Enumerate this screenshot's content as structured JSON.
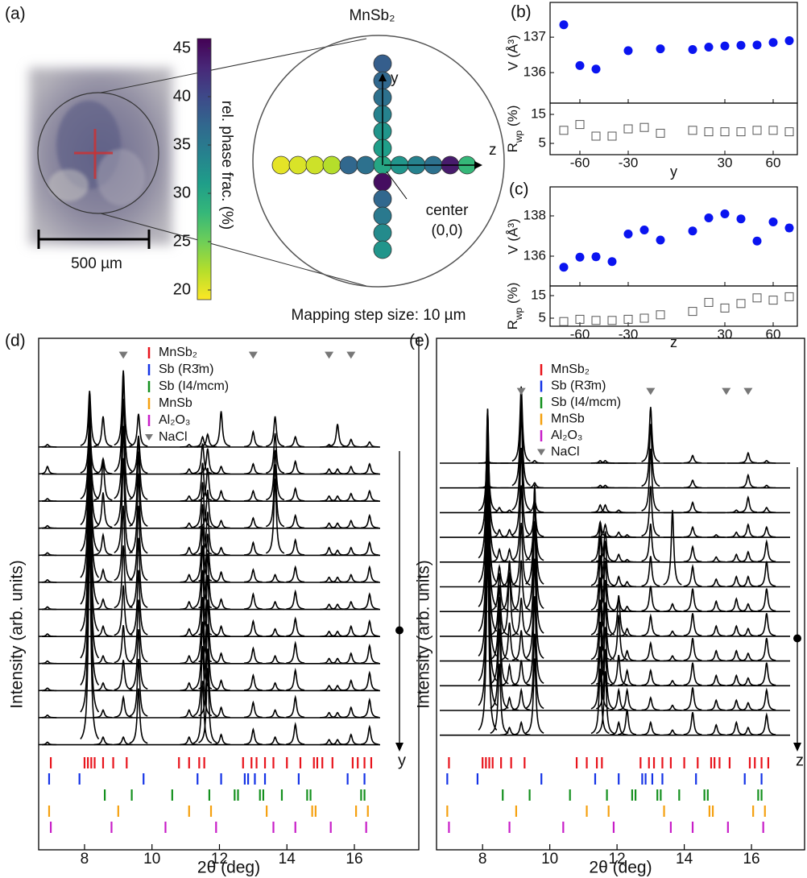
{
  "chart_data": [
    {
      "type": "map",
      "panel": "(a)",
      "title": "MnSb₂",
      "scale_bar": "500 µm",
      "colorbar": {
        "label": "rel. phase frac. (%)",
        "ylim": [
          19,
          46
        ],
        "yticks": [
          20,
          25,
          30,
          35,
          40,
          45
        ]
      },
      "z_scan": {
        "axis_label": "z",
        "positions": [
          -60,
          -50,
          -40,
          -30,
          -20,
          -10,
          0,
          10,
          20,
          30,
          40,
          50
        ],
        "values": [
          20,
          20.5,
          21,
          22,
          37,
          36,
          30,
          32,
          34,
          36,
          44,
          28
        ]
      },
      "y_scan": {
        "axis_label": "y",
        "positions": [
          60,
          50,
          40,
          30,
          20,
          10,
          -10,
          -20,
          -30,
          -40,
          -50
        ],
        "values": [
          38,
          37,
          36,
          34,
          32,
          31,
          45,
          37,
          35,
          33,
          32
        ]
      },
      "center_label": [
        "center",
        "(0,0)"
      ],
      "caption": "Mapping step size: 10 µm"
    },
    {
      "type": "scatter",
      "panel": "(b)",
      "xlabel": "y",
      "xlim": [
        -78.5,
        75
      ],
      "xticks": [
        -60,
        -30,
        30,
        60
      ],
      "top": {
        "ylabel": "V (Å³)",
        "ylim": [
          135.14,
          137.98
        ],
        "yticks": [
          136,
          137
        ],
        "color": "#0a14f0",
        "x": [
          -70,
          -60,
          -50,
          -30,
          -10,
          10,
          20,
          30,
          40,
          50,
          60,
          70
        ],
        "values": [
          137.35,
          136.2,
          136.1,
          136.62,
          136.67,
          136.65,
          136.72,
          136.75,
          136.77,
          136.78,
          136.85,
          136.9
        ]
      },
      "bottom": {
        "ylabel": [
          "R",
          "wp",
          " (%)"
        ],
        "ylim": [
          1.11,
          18.89
        ],
        "yticks": [
          5,
          15
        ],
        "color": "#555555",
        "x": [
          -70,
          -60,
          -50,
          -40,
          -30,
          -20,
          -10,
          10,
          20,
          30,
          40,
          50,
          60,
          70
        ],
        "values": [
          9.5,
          11.5,
          7.5,
          7.5,
          10,
          10.5,
          8.5,
          9.5,
          9,
          9,
          9,
          9.5,
          9.5,
          9
        ]
      }
    },
    {
      "type": "scatter",
      "panel": "(c)",
      "xlabel": "z",
      "xlim": [
        -78.5,
        75
      ],
      "xticks": [
        -60,
        -30,
        30,
        60
      ],
      "top": {
        "ylabel": "V (Å³)",
        "ylim": [
          134.52,
          139.44
        ],
        "yticks": [
          136,
          138
        ],
        "color": "#0a14f0",
        "x": [
          -70,
          -60,
          -50,
          -40,
          -30,
          -20,
          -10,
          10,
          20,
          30,
          40,
          50,
          60,
          70
        ],
        "values": [
          135.45,
          135.95,
          135.97,
          135.73,
          137.1,
          137.3,
          136.8,
          137.25,
          137.9,
          138.1,
          137.85,
          136.75,
          137.7,
          137.4
        ],
        "errors": [
          0.05,
          0.12,
          0.15,
          0.06,
          0.05,
          0.05,
          0.05,
          0.05,
          0.06,
          0.06,
          0.12,
          0.06,
          0.1,
          0.15
        ]
      },
      "bottom": {
        "ylabel": [
          "R",
          "wp",
          " (%)"
        ],
        "ylim": [
          1.43,
          19.29
        ],
        "yticks": [
          5,
          15
        ],
        "color": "#555555",
        "x": [
          -70,
          -60,
          -50,
          -40,
          -30,
          -20,
          -10,
          10,
          20,
          30,
          40,
          50,
          60,
          70
        ],
        "values": [
          3.5,
          4.5,
          4,
          4,
          4.5,
          5,
          6.5,
          8,
          12,
          9.5,
          11.5,
          14,
          13,
          14.5
        ]
      }
    },
    {
      "type": "stacked",
      "panel": "(d)",
      "xlabel": "2θ (deg)",
      "ylabel": "Intensity (arb. units)",
      "scan_axis": "y",
      "xlim": [
        6.64,
        17.91
      ],
      "xticks": [
        8,
        10,
        12,
        14,
        16
      ],
      "ylim": [
        0,
        20
      ],
      "peaks": [
        6.9,
        8.15,
        8.55,
        9.15,
        9.6,
        11.1,
        11.5,
        11.65,
        12.05,
        13.0,
        13.65,
        14.25,
        15.25,
        15.5,
        15.9,
        16.45
      ],
      "traces": [
        [
          0.1,
          2.2,
          1.2,
          3.0,
          1.3,
          0.1,
          0.4,
          0.5,
          1.4,
          0.6,
          1.2,
          0.4,
          0.1,
          0.9,
          0.3,
          0.2
        ],
        [
          0.3,
          2.0,
          0.6,
          3.8,
          1.5,
          0.2,
          1.2,
          1.0,
          0.3,
          0.4,
          1.6,
          0.5,
          0.2,
          0.2,
          0.3,
          0.4
        ],
        [
          0.1,
          3.5,
          1.6,
          4.0,
          2.5,
          0.2,
          1.5,
          1.3,
          0.4,
          0.4,
          2.0,
          0.5,
          0.2,
          0.2,
          0.3,
          0.4
        ],
        [
          0.1,
          5.0,
          1.4,
          4.0,
          3.0,
          0.2,
          1.8,
          1.5,
          0.3,
          0.4,
          2.5,
          0.5,
          0.2,
          0.2,
          0.3,
          0.5
        ],
        [
          0.1,
          6.0,
          0.8,
          3.8,
          3.2,
          0.3,
          2.0,
          1.7,
          0.3,
          0.5,
          3.0,
          0.6,
          0.3,
          0.2,
          0.3,
          0.5
        ],
        [
          0.1,
          7.0,
          0.5,
          3.0,
          3.0,
          0.3,
          2.2,
          1.9,
          0.4,
          0.5,
          0.3,
          0.6,
          0.2,
          0.2,
          0.3,
          0.6
        ],
        [
          0.1,
          7.5,
          0.4,
          2.5,
          2.8,
          0.3,
          2.5,
          2.2,
          0.4,
          0.6,
          0.3,
          0.7,
          0.2,
          0.2,
          0.3,
          0.6
        ],
        [
          0.1,
          7.8,
          0.4,
          2.0,
          2.6,
          0.3,
          2.6,
          2.4,
          0.4,
          0.6,
          0.3,
          0.7,
          0.2,
          0.2,
          0.4,
          0.6
        ],
        [
          0.1,
          8.0,
          0.3,
          1.5,
          2.5,
          0.3,
          2.6,
          2.5,
          0.4,
          0.6,
          0.3,
          0.8,
          0.2,
          0.2,
          0.4,
          0.7
        ],
        [
          0.1,
          8.0,
          0.3,
          1.2,
          2.4,
          0.3,
          2.7,
          2.6,
          0.4,
          0.6,
          0.3,
          0.8,
          0.2,
          0.2,
          0.4,
          0.7
        ],
        [
          0.1,
          8.2,
          0.3,
          0.8,
          2.3,
          0.3,
          2.8,
          2.7,
          0.4,
          0.6,
          0.3,
          0.8,
          0.2,
          0.2,
          0.4,
          0.7
        ],
        [
          0.1,
          8.3,
          0.3,
          0.3,
          2.2,
          0.3,
          2.5,
          3.0,
          0.4,
          0.6,
          0.3,
          0.8,
          0.2,
          0.2,
          0.4,
          0.7
        ]
      ],
      "phases": [
        {
          "name": "MnSb₂",
          "color": "#e8141c",
          "positions": [
            7.0,
            8.0,
            8.1,
            8.2,
            8.3,
            8.55,
            8.85,
            9.25,
            10.8,
            11.1,
            11.4,
            11.55,
            12.7,
            12.95,
            13.1,
            13.35,
            13.6,
            14.0,
            14.4,
            14.8,
            14.9,
            15.05,
            15.35,
            15.95,
            16.1,
            16.3,
            16.5
          ]
        },
        {
          "name": "Sb (R3̄m)",
          "color": "#1433e6",
          "positions": [
            6.95,
            7.85,
            9.75,
            11.35,
            12.05,
            12.75,
            12.85,
            13.05,
            13.35,
            14.35,
            15.8,
            16.3
          ]
        },
        {
          "name": "Sb (I4/mcm)",
          "color": "#14901e",
          "positions": [
            8.6,
            9.4,
            10.6,
            11.7,
            12.45,
            12.55,
            13.2,
            13.3,
            13.85,
            14.6,
            14.7,
            16.2,
            16.3
          ]
        },
        {
          "name": "MnSb",
          "color": "#f5a00f",
          "positions": [
            6.95,
            9.0,
            11.1,
            11.75,
            13.4,
            14.75,
            14.85,
            16.05,
            16.4
          ]
        },
        {
          "name": "Al₂O₃",
          "color": "#c81ec8",
          "positions": [
            7.0,
            8.8,
            10.4,
            11.9,
            13.6,
            14.25,
            15.3,
            16.35
          ]
        },
        {
          "name": "NaCl",
          "color": "#777777",
          "marker": "triangle",
          "positions": [
            9.15,
            13.0,
            15.25,
            15.9
          ]
        }
      ]
    },
    {
      "type": "stacked",
      "panel": "(e)",
      "xlabel": "2θ (deg)",
      "ylabel": "Intensity (arb. units)",
      "scan_axis": "z",
      "xlim": [
        6.63,
        17.58
      ],
      "xticks": [
        8,
        10,
        12,
        14,
        16
      ],
      "ylim": [
        0,
        20
      ],
      "peaks": [
        8.15,
        8.5,
        8.8,
        9.15,
        9.55,
        11.5,
        11.65,
        12.05,
        12.3,
        13.0,
        13.65,
        14.25,
        14.95,
        15.55,
        15.9,
        16.45
      ],
      "traces": [
        [
          0.1,
          0,
          0,
          3.0,
          0.1,
          0.1,
          0.1,
          0,
          0,
          2.2,
          0,
          0.3,
          0,
          0,
          0.4,
          0.1
        ],
        [
          0.2,
          0,
          0,
          3.5,
          0.2,
          0.1,
          0.1,
          0,
          0,
          2.5,
          0,
          0.3,
          0,
          0,
          0.5,
          0.1
        ],
        [
          3.0,
          0.2,
          0.1,
          4.0,
          0.5,
          0.3,
          0.3,
          0.1,
          0,
          2.5,
          0,
          0.4,
          0,
          0.1,
          0.6,
          0.2
        ],
        [
          5.0,
          0.3,
          0.3,
          3.5,
          1.2,
          0.6,
          0.5,
          0.2,
          0.1,
          2.0,
          0,
          0.4,
          0.1,
          0.2,
          0.5,
          0.4
        ],
        [
          6.0,
          0.5,
          0.5,
          3.0,
          2.5,
          1.5,
          1.2,
          0.3,
          0.1,
          1.5,
          0,
          0.6,
          0.2,
          0.3,
          0.4,
          0.8
        ],
        [
          6.5,
          0.8,
          0.8,
          2.5,
          4.0,
          2.0,
          1.8,
          0.4,
          0.2,
          1.2,
          3.0,
          0.8,
          0.3,
          0.4,
          0.4,
          1.0
        ],
        [
          7.0,
          1.5,
          2.0,
          2.0,
          4.5,
          2.2,
          2.0,
          0.5,
          0.2,
          1.0,
          0.3,
          0.9,
          0.4,
          0.5,
          0.3,
          0.9
        ],
        [
          7.2,
          2.0,
          2.5,
          1.5,
          4.5,
          2.3,
          2.2,
          1.6,
          0.3,
          0.8,
          0.2,
          0.9,
          0.4,
          0.4,
          0.3,
          0.9
        ],
        [
          7.2,
          2.5,
          1.5,
          1.2,
          4.0,
          2.4,
          2.3,
          1.8,
          0.4,
          0.7,
          0.2,
          0.9,
          0.4,
          0.4,
          0.3,
          0.9
        ],
        [
          7.2,
          3.0,
          0.8,
          1.0,
          3.5,
          2.5,
          2.3,
          1.2,
          0.6,
          0.6,
          0.2,
          0.9,
          0.4,
          0.4,
          0.3,
          0.9
        ],
        [
          7.3,
          3.2,
          0.5,
          0.8,
          3.0,
          2.5,
          2.4,
          0.8,
          0.8,
          0.5,
          0.2,
          0.9,
          0.4,
          0.4,
          0.3,
          0.8
        ],
        [
          7.3,
          2.8,
          0.3,
          0.5,
          3.0,
          2.6,
          2.5,
          0.5,
          1.0,
          0.5,
          0.2,
          0.9,
          0.4,
          0.5,
          0.3,
          0.8
        ]
      ]
    }
  ]
}
